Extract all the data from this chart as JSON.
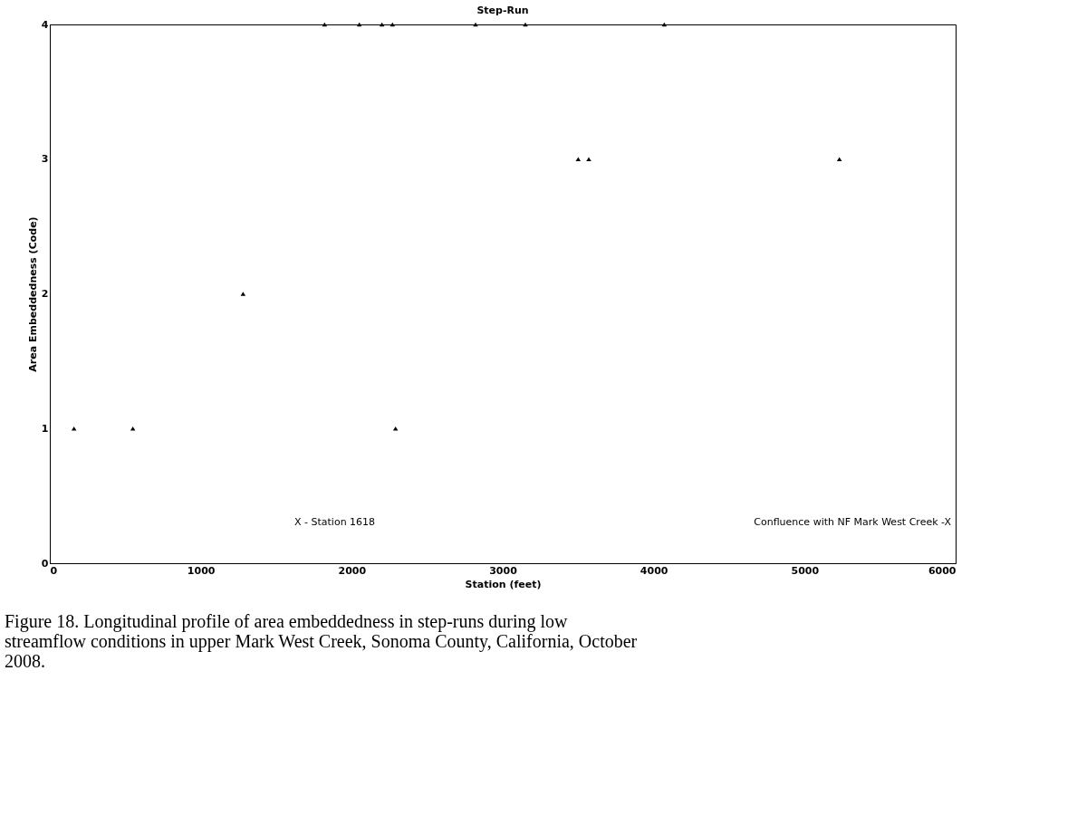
{
  "chart_data": {
    "type": "scatter",
    "title": "Step-Run",
    "xlabel": "Station (feet)",
    "ylabel": "Area Embeddedness (Code)",
    "x": [
      160,
      550,
      1280,
      2290,
      1820,
      2050,
      2200,
      2270,
      2820,
      3150,
      4070,
      3500,
      3570,
      5230
    ],
    "series": [
      {
        "color": "#000000",
        "values": [
          1,
          1,
          2,
          1,
          4,
          4,
          4,
          4,
          4,
          4,
          4,
          3,
          3,
          3
        ]
      }
    ],
    "xlim": [
      0,
      6000
    ],
    "xticks": [
      0,
      1000,
      2000,
      3000,
      4000,
      5000,
      6000
    ],
    "ylim": [
      0,
      4
    ],
    "yticks": [
      0,
      1,
      2,
      3,
      4
    ],
    "grid": false,
    "marker": "triangle",
    "annotations": [
      "X - Station 1618",
      "Confluence with NF Mark West Creek -X",
      "Figure 18.  Longitudinal profile of area embeddedness in step-runs during low streamflow conditions in upper Mark West Creek, Sonoma County, California, October 2008."
    ]
  }
}
